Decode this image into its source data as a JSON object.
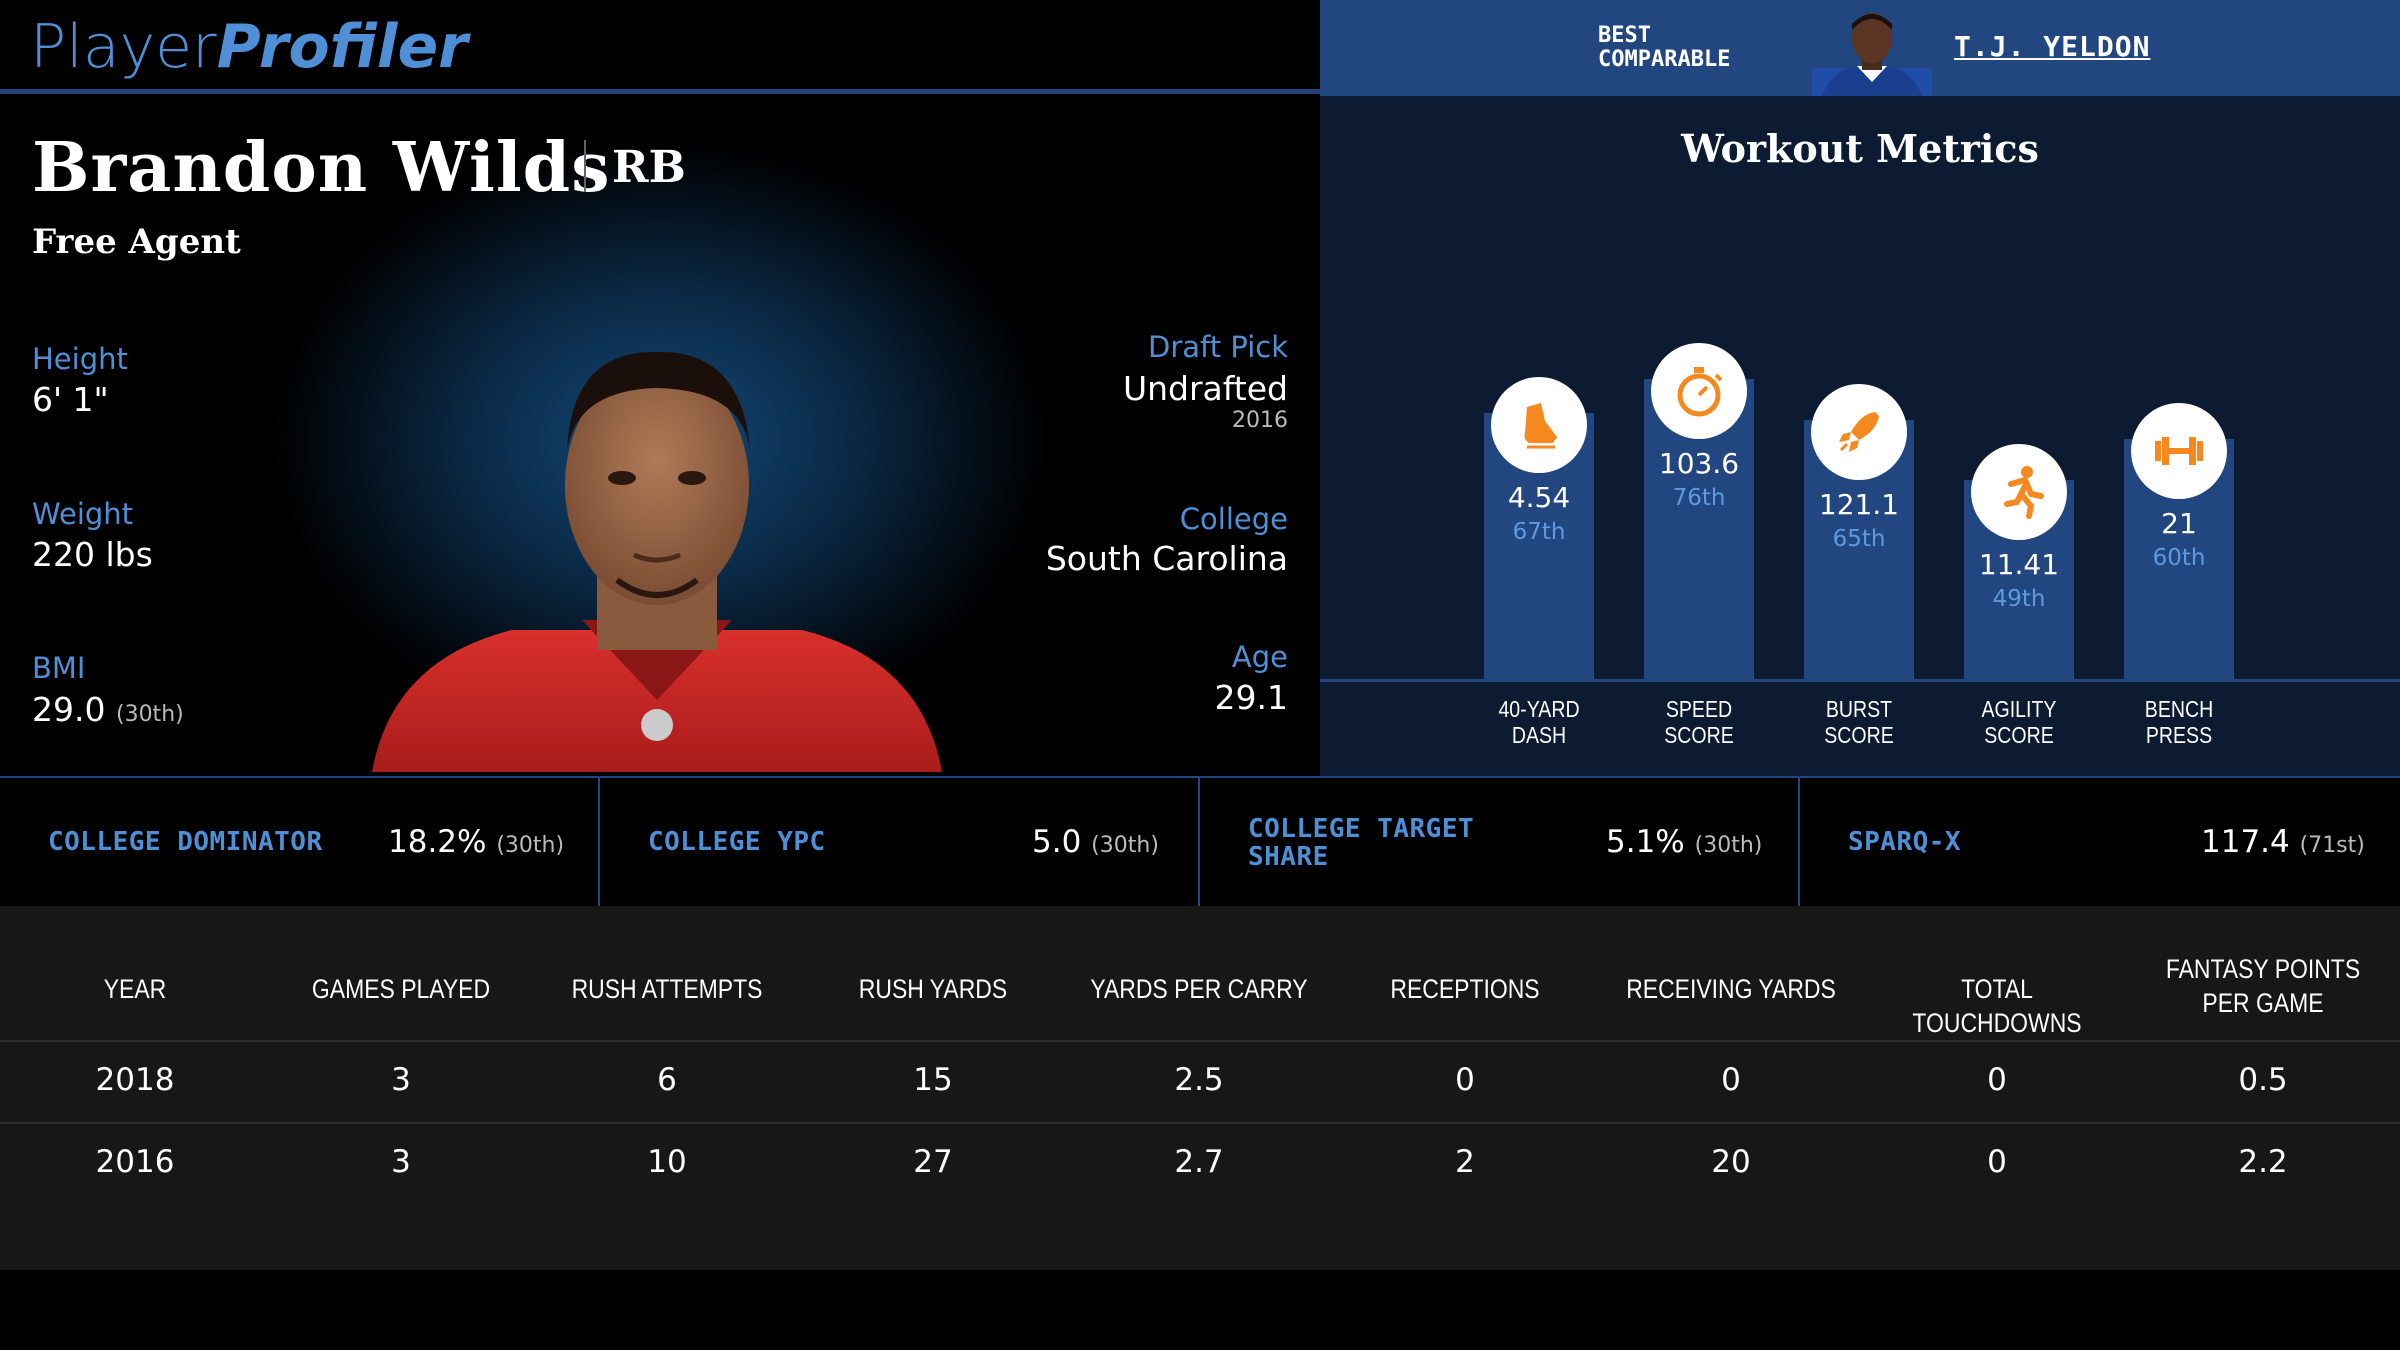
{
  "header": {
    "logo_part1": "Player",
    "logo_part2": "Profiler",
    "best_comparable_line1": "BEST",
    "best_comparable_line2": "COMPARABLE",
    "best_comparable_name": "T.J. YELDON"
  },
  "player": {
    "name": "Brandon Wilds",
    "position": "RB",
    "team": "Free Agent",
    "height_label": "Height",
    "height_value": "6' 1\"",
    "weight_label": "Weight",
    "weight_value": "220 lbs",
    "bmi_label": "BMI",
    "bmi_value": "29.0",
    "bmi_pct": "(30th)",
    "draft_label": "Draft Pick",
    "draft_value": "Undrafted",
    "draft_year": "2016",
    "college_label": "College",
    "college_value": "South Carolina",
    "age_label": "Age",
    "age_value": "29.1"
  },
  "workout": {
    "title": "Workout Metrics",
    "metrics": [
      {
        "label1": "40-YARD",
        "label2": "DASH",
        "value": "4.54",
        "pct": "67th",
        "percentile": 67,
        "icon": "running-shoe-icon"
      },
      {
        "label1": "SPEED",
        "label2": "SCORE",
        "value": "103.6",
        "pct": "76th",
        "percentile": 76,
        "icon": "stopwatch-icon"
      },
      {
        "label1": "BURST",
        "label2": "SCORE",
        "value": "121.1",
        "pct": "65th",
        "percentile": 65,
        "icon": "rocket-icon"
      },
      {
        "label1": "AGILITY",
        "label2": "SCORE",
        "value": "11.41",
        "pct": "49th",
        "percentile": 49,
        "icon": "runner-icon"
      },
      {
        "label1": "BENCH",
        "label2": "PRESS",
        "value": "21",
        "pct": "60th",
        "percentile": 60,
        "icon": "dumbbell-icon"
      }
    ],
    "accent_color": "#f5891f",
    "bar_color": "#22467f"
  },
  "college": [
    {
      "label": "COLLEGE DOMINATOR",
      "value": "18.2%",
      "pct": "(30th)"
    },
    {
      "label": "COLLEGE YPC",
      "value": "5.0",
      "pct": "(30th)"
    },
    {
      "label_line1": "COLLEGE TARGET",
      "label_line2": "SHARE",
      "value": "5.1%",
      "pct": "(30th)"
    },
    {
      "label": "SPARQ-X",
      "value": "117.4",
      "pct": "(71st)"
    }
  ],
  "table": {
    "headers": [
      "YEAR",
      "GAMES PLAYED",
      "RUSH ATTEMPTS",
      "RUSH YARDS",
      "YARDS PER CARRY",
      "RECEPTIONS",
      "RECEIVING YARDS",
      "TOTAL TOUCHDOWNS",
      "FANTASY POINTS PER GAME"
    ],
    "rows": [
      [
        "2018",
        "3",
        "6",
        "15",
        "2.5",
        "0",
        "0",
        "0",
        "0.5"
      ],
      [
        "2016",
        "3",
        "10",
        "27",
        "2.7",
        "2",
        "20",
        "0",
        "2.2"
      ]
    ]
  }
}
